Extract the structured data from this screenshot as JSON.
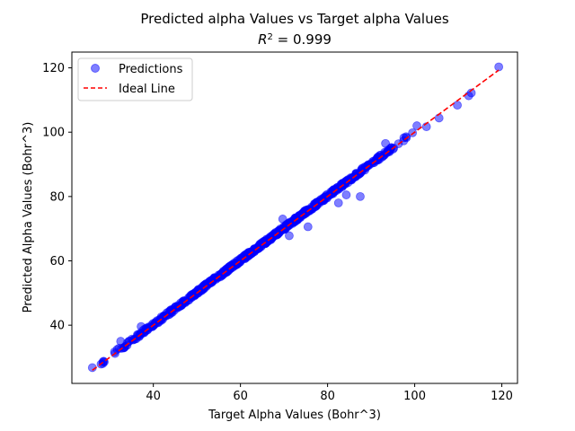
{
  "chart_data": {
    "type": "scatter",
    "title": "Predicted alpha Values vs Target alpha Values",
    "subtitle_prefix": "R",
    "subtitle_sup": "2",
    "subtitle_suffix": " =  0.999",
    "xlabel": "Target Alpha Values (Bohr^3)",
    "ylabel": "Predicted Alpha Values (Bohr^3)",
    "xlim": [
      21.3,
      123.6
    ],
    "ylim": [
      21.9,
      124.9
    ],
    "xticks": [
      40,
      60,
      80,
      100,
      120
    ],
    "yticks": [
      40,
      60,
      80,
      100,
      120
    ],
    "grid": false,
    "legend_position": "top-left",
    "series": [
      {
        "name": "Predictions",
        "kind": "scatter",
        "color": "#0000ff",
        "opacity": 0.5,
        "dense_trend": {
          "x_range": [
            26,
            104
          ],
          "slope": 1.0,
          "intercept": 0.2,
          "spread": 0.6,
          "note_count": 700
        },
        "points": [
          {
            "x": 26.0,
            "y": 26.8
          },
          {
            "x": 28.0,
            "y": 27.9
          },
          {
            "x": 28.6,
            "y": 28.8
          },
          {
            "x": 31.2,
            "y": 31.2
          },
          {
            "x": 32.5,
            "y": 35.0
          },
          {
            "x": 35.8,
            "y": 35.7
          },
          {
            "x": 36.5,
            "y": 37.0
          },
          {
            "x": 37.2,
            "y": 39.6
          },
          {
            "x": 38.8,
            "y": 39.4
          },
          {
            "x": 69.7,
            "y": 73.0
          },
          {
            "x": 71.2,
            "y": 67.8
          },
          {
            "x": 75.5,
            "y": 70.6
          },
          {
            "x": 82.5,
            "y": 78.0
          },
          {
            "x": 84.3,
            "y": 80.5
          },
          {
            "x": 87.5,
            "y": 80.0
          },
          {
            "x": 93.3,
            "y": 96.5
          },
          {
            "x": 100.5,
            "y": 102.0
          },
          {
            "x": 102.7,
            "y": 101.7
          },
          {
            "x": 105.6,
            "y": 104.4
          },
          {
            "x": 109.8,
            "y": 108.4
          },
          {
            "x": 112.4,
            "y": 111.3
          },
          {
            "x": 113.0,
            "y": 112.2
          },
          {
            "x": 119.3,
            "y": 120.3
          }
        ]
      },
      {
        "name": "Ideal Line",
        "kind": "line",
        "color": "#ff0000",
        "dash": true,
        "x": [
          26.0,
          119.3
        ],
        "y": [
          26.0,
          119.3
        ]
      }
    ]
  }
}
